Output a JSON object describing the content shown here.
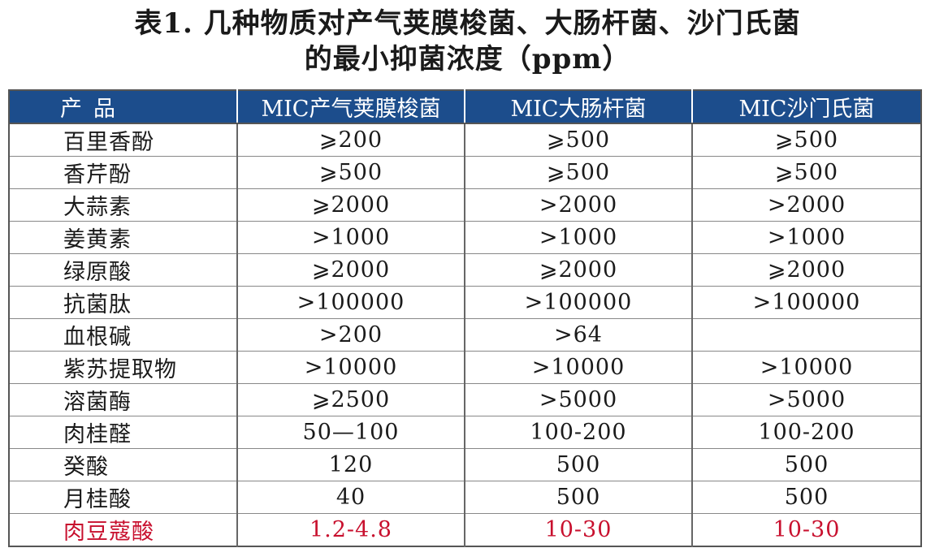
{
  "title": {
    "line1": "表1. 几种物质对产气荚膜梭菌、大肠杆菌、沙门氏菌",
    "line2": "的最小抑菌浓度（ppm）"
  },
  "table": {
    "headers": [
      "产品",
      "MIC产气荚膜梭菌",
      "MIC大肠杆菌",
      "MIC沙门氏菌"
    ],
    "rows": [
      [
        "百里香酚",
        "⩾200",
        "⩾500",
        "⩾500"
      ],
      [
        "香芹酚",
        "⩾500",
        "⩾500",
        "⩾500"
      ],
      [
        "大蒜素",
        "⩾2000",
        ">2000",
        ">2000"
      ],
      [
        "姜黄素",
        ">1000",
        ">1000",
        ">1000"
      ],
      [
        "绿原酸",
        "⩾2000",
        "⩾2000",
        "⩾2000"
      ],
      [
        "抗菌肽",
        ">100000",
        ">100000",
        ">100000"
      ],
      [
        "血根碱",
        ">200",
        ">64",
        ""
      ],
      [
        "紫苏提取物",
        ">10000",
        ">10000",
        ">10000"
      ],
      [
        "溶菌酶",
        "⩾2500",
        ">5000",
        ">5000"
      ],
      [
        "肉桂醛",
        "50—100",
        "100-200",
        "100-200"
      ],
      [
        "癸酸",
        "120",
        "500",
        "500"
      ],
      [
        "月桂酸",
        "40",
        "500",
        "500"
      ],
      [
        "肉豆蔻酸",
        "1.2-4.8",
        "10-30",
        "10-30"
      ]
    ],
    "highlight_color": "#c8102e",
    "header_color": "#1c4d8c"
  }
}
